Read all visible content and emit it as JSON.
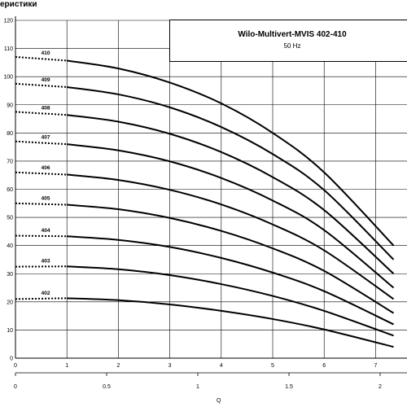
{
  "page_title": "еристики",
  "chart_data": {
    "type": "line",
    "title": "Wilo-Multivert-MVIS 402-410",
    "subtitle": "50 Hz",
    "xlabel": "Q",
    "ylabel": "",
    "y_ticks": [
      "0",
      "10",
      "20",
      "30",
      "40",
      "50",
      "60",
      "70",
      "80",
      "90",
      "100",
      "110",
      "120"
    ],
    "x_ticks_top": [
      "0",
      "1",
      "2",
      "3",
      "4",
      "5",
      "6",
      "7"
    ],
    "x_ticks_bottom": [
      "0",
      "0.5",
      "1",
      "1.5",
      "2"
    ],
    "xlim": [
      0,
      7.35
    ],
    "ylim": [
      0,
      120
    ],
    "grid": true,
    "dotted_until_x": 1.0,
    "series": [
      {
        "name": "402",
        "values": [
          [
            0,
            21
          ],
          [
            1,
            21.3
          ],
          [
            2,
            20.6
          ],
          [
            3,
            19.1
          ],
          [
            4,
            16.8
          ],
          [
            5,
            13.9
          ],
          [
            6,
            10.2
          ],
          [
            7.35,
            4
          ]
        ]
      },
      {
        "name": "403",
        "values": [
          [
            0,
            32.5
          ],
          [
            1,
            32.6
          ],
          [
            2,
            31.6
          ],
          [
            3,
            29.5
          ],
          [
            4,
            26.3
          ],
          [
            5,
            22.1
          ],
          [
            6,
            16.8
          ],
          [
            7.35,
            8
          ]
        ]
      },
      {
        "name": "404",
        "values": [
          [
            0,
            43.5
          ],
          [
            1,
            43.3
          ],
          [
            2,
            42
          ],
          [
            3,
            39.5
          ],
          [
            4,
            35.6
          ],
          [
            5,
            30.4
          ],
          [
            6,
            23.8
          ],
          [
            7.35,
            12
          ]
        ]
      },
      {
        "name": "405",
        "values": [
          [
            0,
            55
          ],
          [
            1,
            54.5
          ],
          [
            2,
            52.9
          ],
          [
            3,
            49.8
          ],
          [
            4,
            45.2
          ],
          [
            5,
            39
          ],
          [
            6,
            31
          ],
          [
            7.35,
            16
          ]
        ]
      },
      {
        "name": "406",
        "values": [
          [
            0,
            66
          ],
          [
            1,
            65.2
          ],
          [
            2,
            63.3
          ],
          [
            3,
            59.8
          ],
          [
            4,
            54.6
          ],
          [
            5,
            47.5
          ],
          [
            6,
            38.3
          ],
          [
            7.35,
            21
          ]
        ]
      },
      {
        "name": "407",
        "values": [
          [
            0,
            77
          ],
          [
            1,
            76
          ],
          [
            2,
            73.8
          ],
          [
            3,
            69.9
          ],
          [
            4,
            64
          ],
          [
            5,
            56
          ],
          [
            6,
            45.5
          ],
          [
            7.35,
            25
          ]
        ]
      },
      {
        "name": "408",
        "values": [
          [
            0,
            87.5
          ],
          [
            1,
            86.4
          ],
          [
            2,
            84
          ],
          [
            3,
            79.7
          ],
          [
            4,
            73.2
          ],
          [
            5,
            64.3
          ],
          [
            6,
            52.6
          ],
          [
            7.35,
            30
          ]
        ]
      },
      {
        "name": "409",
        "values": [
          [
            0,
            97.5
          ],
          [
            1,
            96.3
          ],
          [
            2,
            93.7
          ],
          [
            3,
            89.1
          ],
          [
            4,
            82.1
          ],
          [
            5,
            72.5
          ],
          [
            6,
            59.7
          ],
          [
            7.35,
            35
          ]
        ]
      },
      {
        "name": "410",
        "values": [
          [
            0,
            107
          ],
          [
            1,
            105.7
          ],
          [
            2,
            102.9
          ],
          [
            3,
            97.9
          ],
          [
            4,
            90.5
          ],
          [
            5,
            80
          ],
          [
            6,
            66
          ],
          [
            7.35,
            40
          ]
        ]
      }
    ]
  }
}
